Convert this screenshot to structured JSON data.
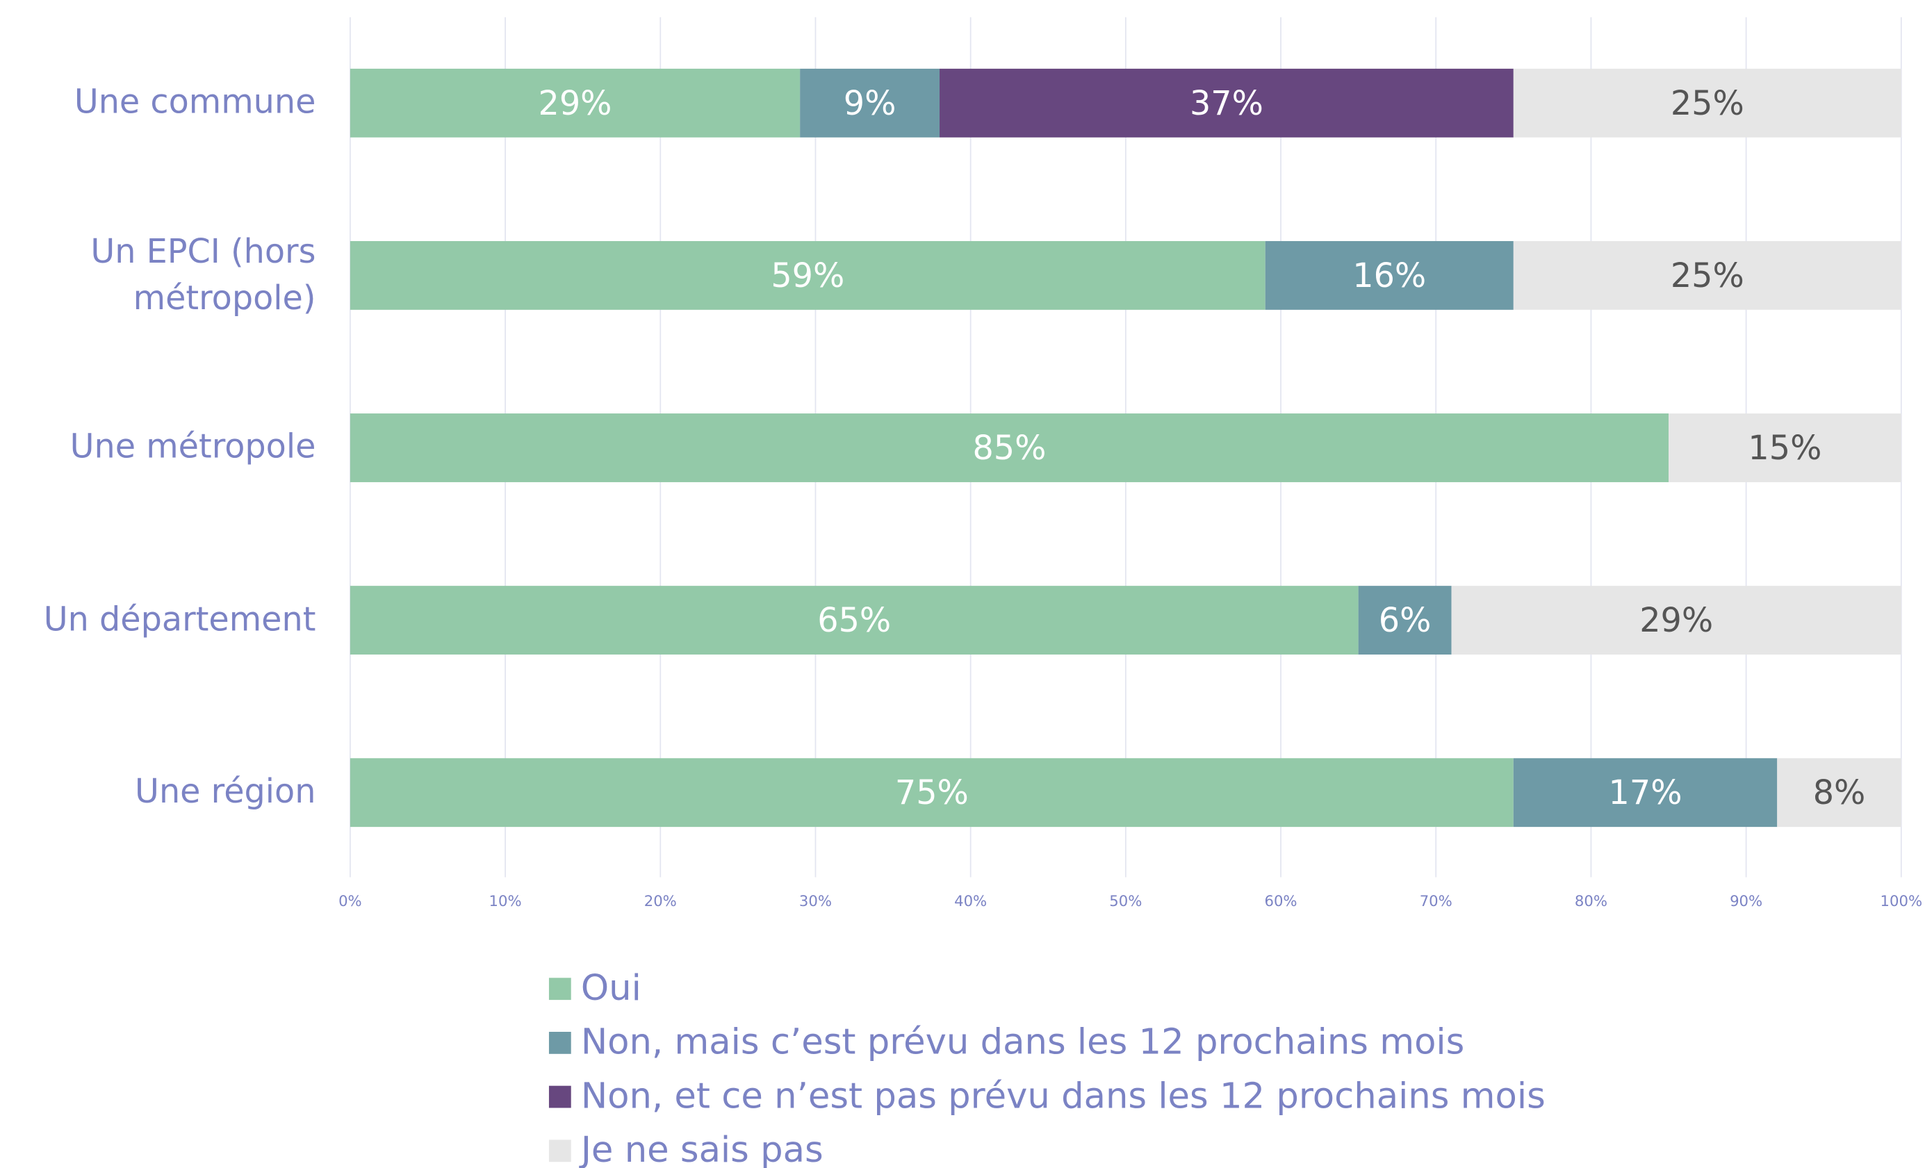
{
  "chart_data": {
    "type": "stacked-bar-horizontal",
    "categories": [
      "Une commune",
      "Un EPCI (hors métropole)",
      "Une métropole",
      "Un département",
      "Une région"
    ],
    "series": [
      {
        "name": "Oui",
        "color": "#93c9a8",
        "label_color": "#ffffff",
        "values": [
          29,
          59,
          85,
          65,
          75
        ],
        "value_labels": [
          "29%",
          "59%",
          "85%",
          "65%",
          "75%"
        ]
      },
      {
        "name": "Non, mais c’est prévu dans les 12 prochains mois",
        "color": "#6e9aa6",
        "label_color": "#ffffff",
        "values": [
          9,
          16,
          null,
          6,
          17
        ],
        "value_labels": [
          "9%",
          "16%",
          null,
          "6%",
          "17%"
        ]
      },
      {
        "name": "Non, et ce n’est pas prévu dans les 12 prochains mois",
        "color": "#67477f",
        "label_color": "#ffffff",
        "values": [
          37,
          null,
          null,
          null,
          null
        ],
        "value_labels": [
          "37%",
          null,
          null,
          null,
          null
        ]
      },
      {
        "name": "Je ne sais pas",
        "color": "#e6e6e6",
        "label_color": "#555555",
        "values": [
          25,
          25,
          15,
          29,
          8
        ],
        "value_labels": [
          "25%",
          "25%",
          "15%",
          "29%",
          "8%"
        ]
      }
    ],
    "xlim": [
      0,
      100
    ],
    "xticks": [
      {
        "value": 0,
        "label": "0%"
      },
      {
        "value": 10,
        "label": "10%"
      },
      {
        "value": 20,
        "label": "20%"
      },
      {
        "value": 30,
        "label": "30%"
      },
      {
        "value": 40,
        "label": "40%"
      },
      {
        "value": 50,
        "label": "50%"
      },
      {
        "value": 60,
        "label": "60%"
      },
      {
        "value": 70,
        "label": "70%"
      },
      {
        "value": 80,
        "label": "80%"
      },
      {
        "value": 90,
        "label": "90%"
      },
      {
        "value": 100,
        "label": "100%"
      }
    ],
    "grid": true
  }
}
